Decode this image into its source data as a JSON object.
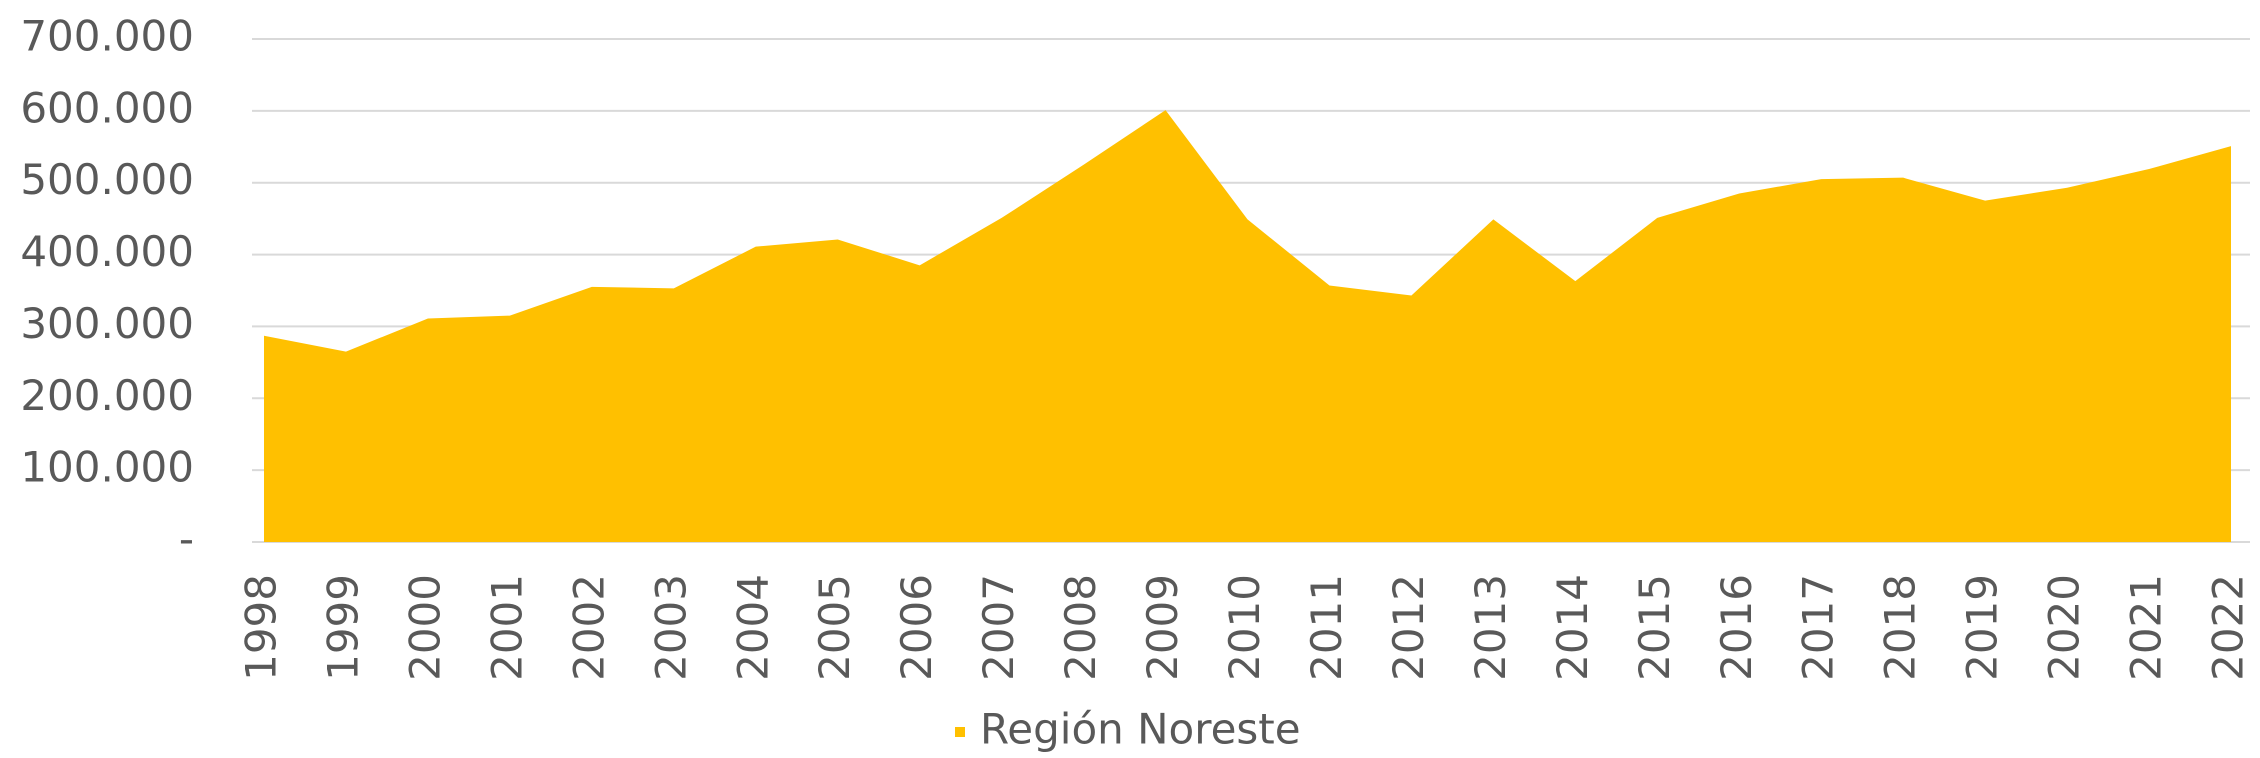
{
  "chart_data": {
    "type": "area",
    "categories": [
      "1998",
      "1999",
      "2000",
      "2001",
      "2002",
      "2003",
      "2004",
      "2005",
      "2006",
      "2007",
      "2008",
      "2009",
      "2010",
      "2011",
      "2012",
      "2013",
      "2014",
      "2015",
      "2016",
      "2017",
      "2018",
      "2019",
      "2020",
      "2021",
      "2022"
    ],
    "series": [
      {
        "name": "Región Noreste",
        "color": "#ffc000",
        "values": [
          287000,
          265000,
          311000,
          315000,
          355000,
          353000,
          411000,
          421000,
          385000,
          451000,
          525000,
          601000,
          449000,
          357000,
          343000,
          449000,
          363000,
          451000,
          485000,
          505000,
          507000,
          475000,
          493000,
          519000,
          551000
        ]
      }
    ],
    "ylim": [
      0,
      700000
    ],
    "yticks": [
      {
        "value": 0,
        "label": "-"
      },
      {
        "value": 100000,
        "label": "100.000"
      },
      {
        "value": 200000,
        "label": "200.000"
      },
      {
        "value": 300000,
        "label": "300.000"
      },
      {
        "value": 400000,
        "label": "400.000"
      },
      {
        "value": 500000,
        "label": "500.000"
      },
      {
        "value": 600000,
        "label": "600.000"
      },
      {
        "value": 700000,
        "label": "700.000"
      }
    ],
    "grid": true,
    "legend": "bottom"
  }
}
